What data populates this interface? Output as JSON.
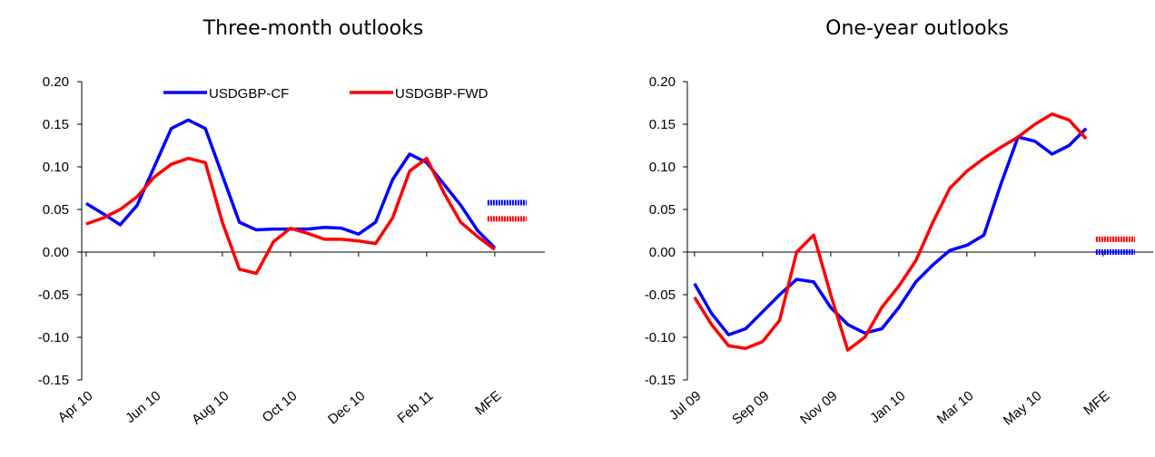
{
  "chart_data": [
    {
      "type": "line",
      "title": "Three-month outlooks",
      "x": [
        0,
        0.5,
        1,
        1.5,
        2,
        2.5,
        3,
        3.5,
        4,
        4.5,
        5,
        5.5,
        6,
        6.5,
        7,
        7.5,
        8,
        8.5,
        9,
        9.5,
        10,
        10.5,
        11,
        11.5,
        12
      ],
      "xlim": [
        -0.13,
        13.47
      ],
      "xticks": [
        {
          "value": 0,
          "label": "Apr 10"
        },
        {
          "value": 2,
          "label": "Jun 10"
        },
        {
          "value": 4,
          "label": "Aug 10"
        },
        {
          "value": 6,
          "label": "Oct 10"
        },
        {
          "value": 8,
          "label": "Dec 10"
        },
        {
          "value": 10,
          "label": "Feb 11"
        },
        {
          "value": 12,
          "label": "MFE"
        }
      ],
      "ylim": [
        -0.15,
        0.2
      ],
      "yticks": [
        {
          "value": 0.2,
          "label": "0.20"
        },
        {
          "value": 0.15,
          "label": "0.15"
        },
        {
          "value": 0.1,
          "label": "0.10"
        },
        {
          "value": 0.05,
          "label": "0.05"
        },
        {
          "value": 0,
          "label": "0.00"
        },
        {
          "value": -0.05,
          "label": "-0.05"
        },
        {
          "value": -0.1,
          "label": "-0.10"
        },
        {
          "value": -0.15,
          "label": "-0.15"
        }
      ],
      "legend": "top",
      "series": [
        {
          "name": "USDGBP-CF",
          "color": "#0000ff",
          "mfe": 0.058,
          "values": [
            0.057,
            0.045,
            0.032,
            0.055,
            0.1,
            0.145,
            0.155,
            0.145,
            0.09,
            0.035,
            0.026,
            0.027,
            0.027,
            0.027,
            0.029,
            0.028,
            0.021,
            0.035,
            0.085,
            0.115,
            0.105,
            0.08,
            0.055,
            0.025,
            0.005
          ]
        },
        {
          "name": "USDGBP-FWD",
          "color": "#ff0000",
          "mfe": 0.039,
          "values": [
            0.033,
            0.04,
            0.05,
            0.065,
            0.088,
            0.103,
            0.11,
            0.105,
            0.035,
            -0.02,
            -0.025,
            0.012,
            0.028,
            0.022,
            0.015,
            0.015,
            0.013,
            0.01,
            0.04,
            0.095,
            0.11,
            0.07,
            0.035,
            0.018,
            0.003
          ]
        }
      ]
    },
    {
      "type": "line",
      "title": "One-year outlooks",
      "x": [
        0,
        0.5,
        1,
        1.5,
        2,
        2.5,
        3,
        3.5,
        4,
        4.5,
        5,
        5.5,
        6,
        6.5,
        7,
        7.5,
        8,
        8.5,
        9,
        9.5,
        10,
        10.5,
        11,
        11.5
      ],
      "xlim": [
        -0.21,
        13.47
      ],
      "xticks": [
        {
          "value": 0,
          "label": "Jul 09"
        },
        {
          "value": 2,
          "label": "Sep 09"
        },
        {
          "value": 4,
          "label": "Nov 09"
        },
        {
          "value": 6,
          "label": "Jan 10"
        },
        {
          "value": 8,
          "label": "Mar 10"
        },
        {
          "value": 10,
          "label": "May 10"
        },
        {
          "value": 12,
          "label": "MFE"
        }
      ],
      "ylim": [
        -0.15,
        0.2
      ],
      "yticks": [
        {
          "value": 0.2,
          "label": "0.20"
        },
        {
          "value": 0.15,
          "label": "0.15"
        },
        {
          "value": 0.1,
          "label": "0.10"
        },
        {
          "value": 0.05,
          "label": "0.05"
        },
        {
          "value": 0,
          "label": "0.00"
        },
        {
          "value": -0.05,
          "label": "-0.05"
        },
        {
          "value": -0.1,
          "label": "-0.10"
        },
        {
          "value": -0.15,
          "label": "-0.15"
        }
      ],
      "series": [
        {
          "name": "USDGBP-CF",
          "color": "#0000ff",
          "mfe": 0.0,
          "values": [
            -0.037,
            -0.072,
            -0.097,
            -0.09,
            -0.07,
            -0.05,
            -0.032,
            -0.035,
            -0.065,
            -0.085,
            -0.095,
            -0.09,
            -0.065,
            -0.035,
            -0.015,
            0.002,
            0.008,
            0.02,
            0.08,
            0.135,
            0.13,
            0.115,
            0.125,
            0.145
          ]
        },
        {
          "name": "USDGBP-FWD",
          "color": "#ff0000",
          "mfe": 0.015,
          "values": [
            -0.053,
            -0.085,
            -0.11,
            -0.113,
            -0.105,
            -0.08,
            0.0,
            0.02,
            -0.05,
            -0.115,
            -0.1,
            -0.065,
            -0.04,
            -0.01,
            0.035,
            0.075,
            0.095,
            0.11,
            0.123,
            0.135,
            0.15,
            0.162,
            0.155,
            0.133
          ]
        }
      ]
    }
  ]
}
